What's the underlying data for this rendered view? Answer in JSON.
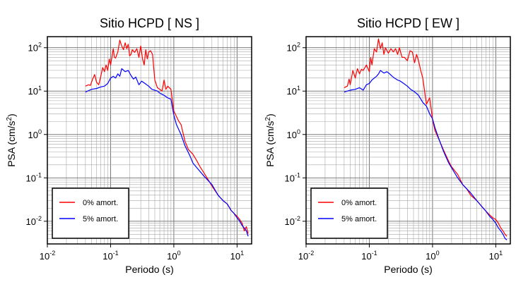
{
  "chart_data": [
    {
      "type": "line",
      "title": "Sitio HCPD [ NS ]",
      "xlabel": "Periodo (s)",
      "ylabel_main": "PSA (cm/s",
      "ylabel_sup": "2",
      "ylabel_close": ")",
      "xscale": "log",
      "yscale": "log",
      "xlim": [
        0.01,
        17
      ],
      "ylim": [
        0.003,
        180
      ],
      "grid": true,
      "legend_position": "bottom-left",
      "x_ticks": [
        {
          "base": "10",
          "exp": "-2"
        },
        {
          "base": "10",
          "exp": "-1"
        },
        {
          "base": "10",
          "exp": "0"
        },
        {
          "base": "10",
          "exp": "1"
        }
      ],
      "y_ticks": [
        {
          "base": "10",
          "exp": "2"
        },
        {
          "base": "10",
          "exp": "1"
        },
        {
          "base": "10",
          "exp": "0"
        },
        {
          "base": "10",
          "exp": "-1"
        },
        {
          "base": "10",
          "exp": "-2"
        }
      ],
      "series": [
        {
          "name": "0% amort.",
          "color": "#ff0000",
          "x": [
            0.04,
            0.045,
            0.048,
            0.052,
            0.056,
            0.06,
            0.065,
            0.07,
            0.075,
            0.08,
            0.085,
            0.09,
            0.095,
            0.1,
            0.105,
            0.11,
            0.115,
            0.12,
            0.13,
            0.14,
            0.15,
            0.16,
            0.17,
            0.18,
            0.19,
            0.2,
            0.21,
            0.22,
            0.24,
            0.26,
            0.28,
            0.3,
            0.32,
            0.34,
            0.36,
            0.38,
            0.4,
            0.43,
            0.46,
            0.5,
            0.55,
            0.6,
            0.65,
            0.7,
            0.75,
            0.8,
            0.85,
            0.9,
            1.0,
            1.1,
            1.2,
            1.3,
            1.5,
            1.7,
            2.0,
            2.3,
            2.6,
            3.0,
            3.5,
            4.0,
            5.0,
            6.0,
            7.0,
            8.0,
            9.0,
            10.0,
            11.0,
            12.0,
            13.0,
            14.0,
            15.0
          ],
          "y": [
            13,
            14,
            13.5,
            19,
            24,
            16,
            14,
            22,
            35,
            28,
            40,
            30,
            55,
            40,
            62,
            95,
            60,
            58,
            80,
            150,
            110,
            90,
            130,
            95,
            120,
            65,
            70,
            90,
            78,
            95,
            60,
            110,
            55,
            40,
            90,
            55,
            80,
            85,
            70,
            18,
            12,
            11,
            10,
            18,
            11,
            13,
            12,
            11,
            3.5,
            2.6,
            2.0,
            1.7,
            0.7,
            0.45,
            0.35,
            0.25,
            0.18,
            0.13,
            0.09,
            0.065,
            0.04,
            0.03,
            0.025,
            0.018,
            0.015,
            0.013,
            0.011,
            0.009,
            0.006,
            0.0075,
            0.0052
          ]
        },
        {
          "name": "5% amort.",
          "color": "#0000ff",
          "x": [
            0.04,
            0.05,
            0.06,
            0.07,
            0.08,
            0.09,
            0.1,
            0.11,
            0.12,
            0.13,
            0.14,
            0.15,
            0.17,
            0.19,
            0.21,
            0.23,
            0.25,
            0.28,
            0.31,
            0.35,
            0.4,
            0.45,
            0.5,
            0.55,
            0.6,
            0.7,
            0.8,
            0.9,
            1.0,
            1.1,
            1.3,
            1.5,
            1.8,
            2.0,
            2.5,
            3.0,
            4.0,
            5.0,
            6.0,
            7.0,
            8.0,
            9.0,
            10.0,
            11.0,
            12.0,
            13.0,
            14.0,
            15.0
          ],
          "y": [
            9.5,
            11,
            11.5,
            12.5,
            13,
            15,
            20,
            22,
            20,
            25,
            22,
            33,
            28,
            30,
            23,
            19,
            21,
            14,
            17,
            15,
            13,
            11,
            10.5,
            10,
            9,
            8,
            7,
            6.5,
            2.8,
            1.7,
            1.0,
            0.55,
            0.32,
            0.22,
            0.15,
            0.11,
            0.07,
            0.04,
            0.03,
            0.025,
            0.018,
            0.015,
            0.012,
            0.01,
            0.008,
            0.007,
            0.006,
            0.0045
          ]
        }
      ]
    },
    {
      "type": "line",
      "title": "Sitio HCPD [ EW ]",
      "xlabel": "Periodo (s)",
      "ylabel_main": "PSA (cm/s",
      "ylabel_sup": "2",
      "ylabel_close": ")",
      "xscale": "log",
      "yscale": "log",
      "xlim": [
        0.01,
        17
      ],
      "ylim": [
        0.003,
        180
      ],
      "grid": true,
      "legend_position": "bottom-left",
      "x_ticks": [
        {
          "base": "10",
          "exp": "-2"
        },
        {
          "base": "10",
          "exp": "-1"
        },
        {
          "base": "10",
          "exp": "0"
        },
        {
          "base": "10",
          "exp": "1"
        }
      ],
      "y_ticks": [
        {
          "base": "10",
          "exp": "2"
        },
        {
          "base": "10",
          "exp": "1"
        },
        {
          "base": "10",
          "exp": "0"
        },
        {
          "base": "10",
          "exp": "-1"
        },
        {
          "base": "10",
          "exp": "-2"
        }
      ],
      "series": [
        {
          "name": "0% amort.",
          "color": "#ff0000",
          "x": [
            0.04,
            0.045,
            0.048,
            0.05,
            0.055,
            0.06,
            0.065,
            0.07,
            0.075,
            0.08,
            0.09,
            0.1,
            0.105,
            0.11,
            0.12,
            0.13,
            0.14,
            0.15,
            0.16,
            0.17,
            0.18,
            0.2,
            0.22,
            0.24,
            0.26,
            0.28,
            0.3,
            0.33,
            0.36,
            0.4,
            0.44,
            0.48,
            0.52,
            0.56,
            0.6,
            0.65,
            0.7,
            0.8,
            0.9,
            0.95,
            1.0,
            1.1,
            1.3,
            1.5,
            1.8,
            2.0,
            2.5,
            3.0,
            3.5,
            4.0,
            5.0,
            6.0,
            7.0,
            8.0,
            9.0,
            10.0,
            11.0,
            12.0,
            13.0,
            14.0,
            15.0
          ],
          "y": [
            12,
            13,
            19,
            14,
            30,
            20,
            33,
            25,
            32,
            30,
            40,
            28,
            60,
            40,
            95,
            80,
            160,
            95,
            130,
            70,
            100,
            75,
            95,
            80,
            95,
            70,
            100,
            60,
            60,
            50,
            85,
            80,
            45,
            70,
            50,
            30,
            20,
            5,
            7,
            4,
            2.2,
            1.2,
            0.7,
            0.43,
            0.24,
            0.18,
            0.12,
            0.07,
            0.055,
            0.04,
            0.03,
            0.022,
            0.017,
            0.014,
            0.012,
            0.011,
            0.009,
            0.007,
            0.006,
            0.005,
            0.0045
          ]
        },
        {
          "name": "5% amort.",
          "color": "#0000ff",
          "x": [
            0.04,
            0.05,
            0.06,
            0.07,
            0.08,
            0.09,
            0.1,
            0.11,
            0.12,
            0.13,
            0.14,
            0.15,
            0.17,
            0.19,
            0.21,
            0.23,
            0.25,
            0.28,
            0.31,
            0.35,
            0.4,
            0.45,
            0.5,
            0.55,
            0.6,
            0.7,
            0.8,
            0.9,
            1.0,
            1.1,
            1.3,
            1.5,
            1.8,
            2.0,
            2.5,
            3.0,
            4.0,
            5.0,
            6.0,
            7.0,
            8.0,
            9.0,
            10.0,
            11.0,
            12.0,
            13.0,
            14.0,
            15.0
          ],
          "y": [
            9.5,
            10.5,
            11,
            12,
            10.5,
            14,
            15,
            18,
            20,
            22,
            25,
            30,
            26,
            28,
            25,
            22,
            20,
            18,
            17,
            15,
            13,
            11,
            10,
            9,
            8,
            5.5,
            4.5,
            3,
            2.3,
            1.4,
            0.7,
            0.4,
            0.22,
            0.17,
            0.1,
            0.07,
            0.045,
            0.03,
            0.022,
            0.017,
            0.013,
            0.011,
            0.009,
            0.007,
            0.006,
            0.005,
            0.004,
            0.0037
          ]
        }
      ]
    }
  ]
}
